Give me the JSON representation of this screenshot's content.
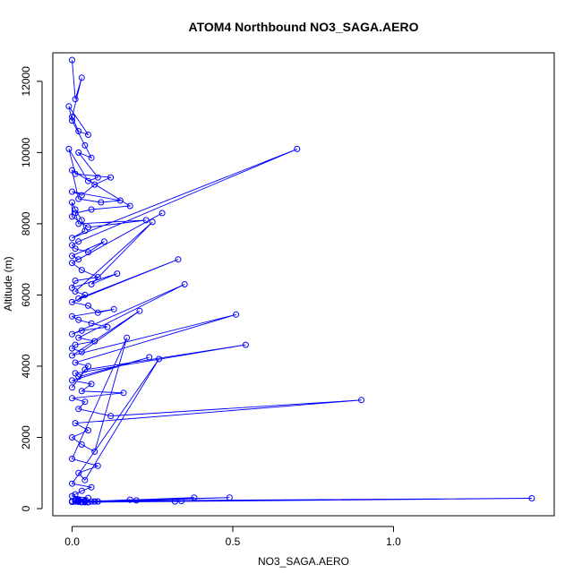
{
  "chart_data": {
    "type": "line",
    "title": "ATOM4 Northbound NO3_SAGA.AERO",
    "xlabel": "NO3_SAGA.AERO",
    "ylabel": "Altitude (m)",
    "xlim": [
      -0.06,
      1.5
    ],
    "ylim": [
      -200,
      12800
    ],
    "x_ticks": [
      0.0,
      0.5,
      1.0
    ],
    "x_tick_labels": [
      "0.0",
      "0.5",
      "1.0"
    ],
    "y_ticks": [
      0,
      2000,
      4000,
      6000,
      8000,
      10000,
      12000
    ],
    "y_tick_labels": [
      "0",
      "2000",
      "4000",
      "6000",
      "8000",
      "10000",
      "12000"
    ],
    "grid": false,
    "series": [
      {
        "color": "#0000ff",
        "marker": "open-circle",
        "x": [
          0.0,
          0.01,
          0.03,
          0.0,
          0.02,
          0.05,
          -0.01,
          0.0,
          0.04,
          0.06,
          0.02,
          0.08,
          0.05,
          -0.01,
          0.01,
          0.12,
          0.07,
          0.03,
          0.0,
          0.15,
          0.09,
          0.02,
          0.0,
          0.18,
          0.06,
          0.01,
          0.02,
          0.23,
          0.05,
          0.0,
          0.0,
          0.01,
          0.03,
          0.04,
          0.0,
          0.7,
          0.02,
          0.0,
          0.01,
          0.05,
          0.1,
          0.0,
          0.02,
          0.28,
          0.0,
          0.03,
          0.08,
          0.01,
          0.0,
          0.14,
          0.06,
          0.25,
          0.01,
          0.04,
          0.02,
          0.33,
          0.0,
          0.05,
          0.08,
          0.13,
          0.0,
          0.02,
          0.06,
          0.11,
          0.03,
          0.0,
          0.35,
          0.02,
          0.07,
          0.01,
          0.0,
          0.03,
          0.21,
          0.0,
          0.51,
          0.01,
          0.05,
          0.0,
          0.04,
          0.54,
          0.01,
          0.02,
          0.24,
          0.0,
          0.06,
          0.03,
          0.16,
          0.0,
          0.04,
          0.02,
          0.12,
          0.9,
          0.01,
          0.05,
          0.0,
          0.03,
          0.07,
          0.17,
          0.0,
          0.08,
          0.02,
          0.04,
          0.27,
          0.0,
          0.06,
          0.03,
          0.01,
          0.0,
          0.05,
          0.02,
          0.04,
          0.08,
          0.0,
          0.03,
          0.18,
          0.06,
          0.01,
          0.02,
          0.34,
          0.04,
          0.0,
          0.07,
          0.2,
          0.05,
          0.01,
          0.49,
          0.03,
          0.08,
          0.38,
          0.02,
          0.32,
          0.05,
          1.43,
          0.0,
          0.07,
          0.01,
          0.04,
          0.02
        ],
        "y": [
          12600,
          11500,
          12100,
          11000,
          10600,
          10500,
          11300,
          10900,
          10200,
          9850,
          10000,
          9300,
          9200,
          10100,
          9400,
          9300,
          9100,
          8800,
          8900,
          8650,
          8600,
          8700,
          9500,
          8500,
          8400,
          8300,
          8000,
          8100,
          7900,
          8200,
          8600,
          8400,
          8100,
          7800,
          7600,
          10100,
          7500,
          7400,
          7300,
          7200,
          7500,
          7100,
          7000,
          8300,
          6900,
          6700,
          6500,
          6400,
          6200,
          6600,
          6300,
          8050,
          6100,
          6000,
          5900,
          7000,
          5800,
          5700,
          5500,
          5600,
          5400,
          5300,
          5200,
          5100,
          5000,
          4900,
          6300,
          4800,
          4700,
          4600,
          4500,
          4400,
          5550,
          4300,
          5450,
          4100,
          4000,
          3400,
          3900,
          4600,
          3800,
          3700,
          4250,
          3600,
          3500,
          3300,
          3250,
          3100,
          3000,
          2800,
          2600,
          3050,
          2400,
          2200,
          2000,
          1800,
          1600,
          4800,
          1400,
          1200,
          1000,
          800,
          4200,
          700,
          600,
          500,
          400,
          350,
          300,
          250,
          220,
          200,
          200,
          190,
          250,
          200,
          230,
          210,
          210,
          180,
          190,
          200,
          230,
          180,
          200,
          310,
          180,
          200,
          310,
          190,
          200,
          180,
          290,
          210,
          200,
          250,
          200,
          230
        ]
      }
    ]
  }
}
